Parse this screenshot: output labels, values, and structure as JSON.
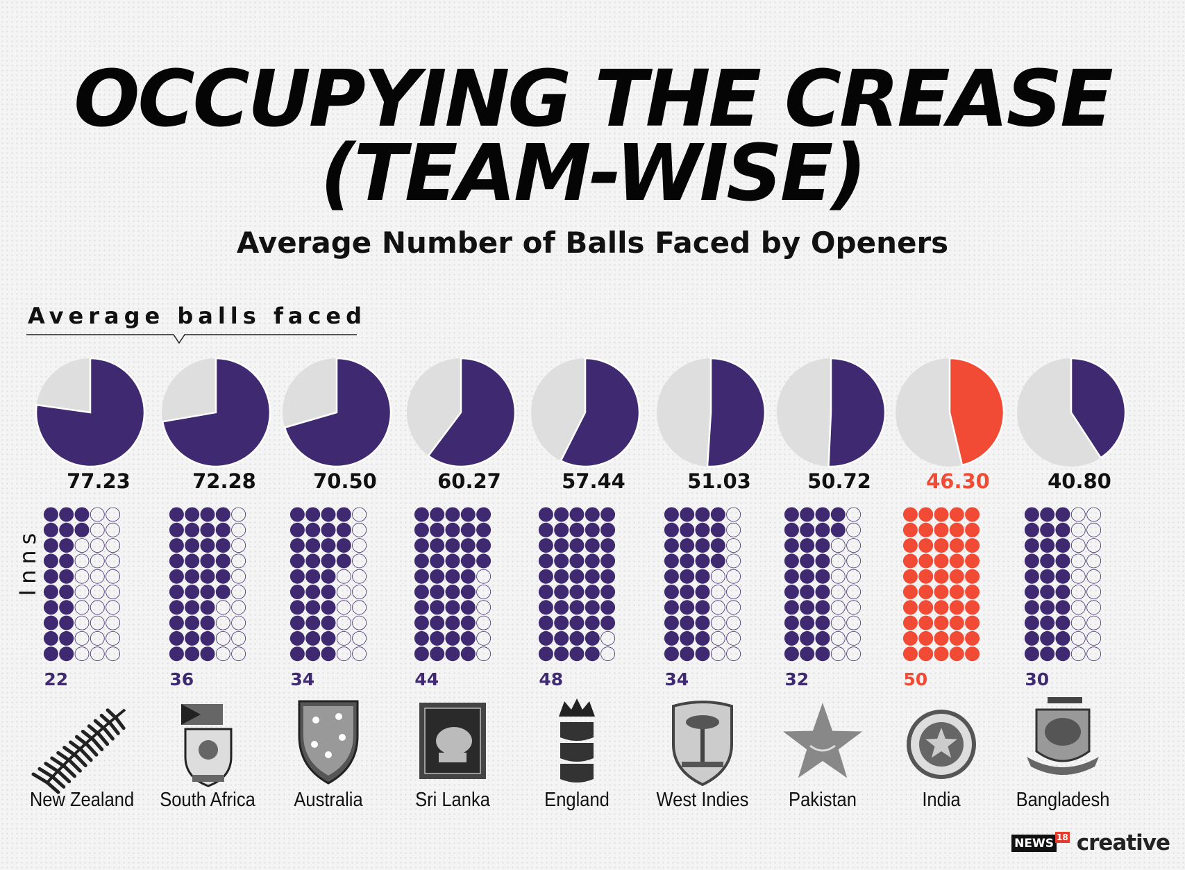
{
  "title_line1": "OCCUPYING THE CREASE",
  "title_line2": "(TEAM-WISE)",
  "subtitle": "Average Number of Balls Faced by Openers",
  "avg_label": "Average balls faced",
  "inns_label": "Inns",
  "brand": {
    "news": "NEWS",
    "num": "18",
    "creative": "creative"
  },
  "colors": {
    "primary": "#3f2a72",
    "highlight": "#f24b35",
    "pie_bg": "#dedede"
  },
  "chart_data": {
    "type": "pie",
    "pie_scale_max": 100,
    "dot_grid_capacity": 50,
    "dot_columns": 5,
    "categories": [
      "New Zealand",
      "South Africa",
      "Australia",
      "Sri Lanka",
      "England",
      "West Indies",
      "Pakistan",
      "India",
      "Bangladesh"
    ],
    "series": [
      {
        "name": "Average balls faced",
        "values": [
          77.23,
          72.28,
          70.5,
          60.27,
          57.44,
          51.03,
          50.72,
          46.3,
          40.8
        ]
      },
      {
        "name": "Inns",
        "values": [
          22,
          36,
          34,
          44,
          48,
          34,
          32,
          50,
          30
        ]
      }
    ],
    "value_labels": [
      "77.23",
      "72.28",
      "70.50",
      "60.27",
      "57.44",
      "51.03",
      "50.72",
      "46.30",
      "40.80"
    ],
    "inns_labels": [
      "22",
      "36",
      "34",
      "44",
      "48",
      "34",
      "32",
      "50",
      "30"
    ],
    "highlight_index": 7,
    "logos": [
      "fern-logo-icon",
      "protea-crest-icon",
      "southern-cross-shield-icon",
      "lion-flag-icon",
      "three-lions-crest-icon",
      "palm-shield-icon",
      "star-crescent-icon",
      "bcci-emblem-icon",
      "tiger-crest-icon"
    ]
  }
}
